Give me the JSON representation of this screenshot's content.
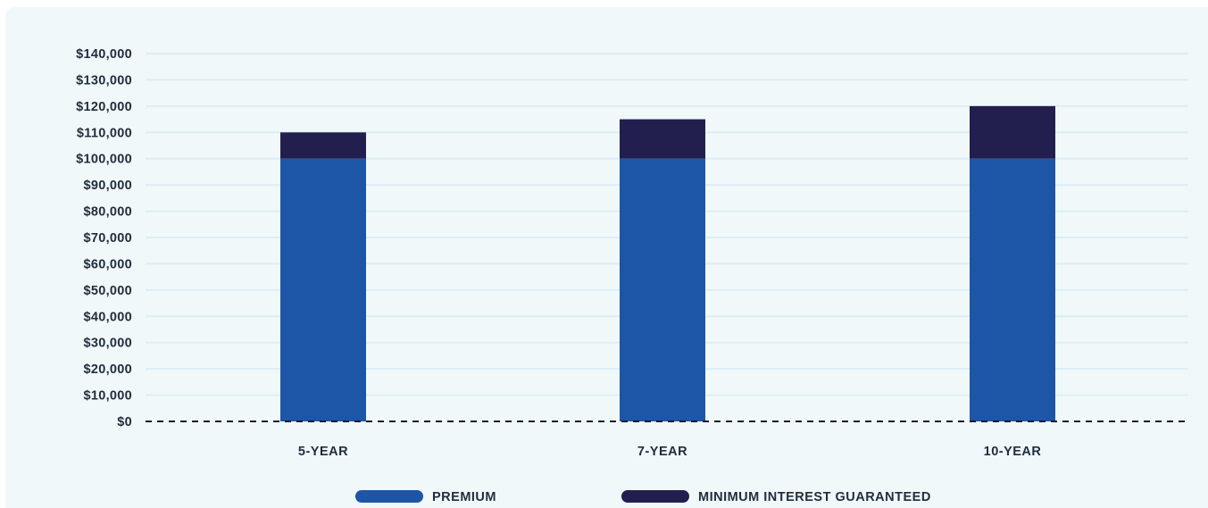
{
  "chart_data": {
    "type": "bar",
    "stacked": true,
    "categories": [
      "5-YEAR",
      "7-YEAR",
      "10-YEAR"
    ],
    "series": [
      {
        "name": "PREMIUM",
        "values": [
          100000,
          100000,
          100000
        ],
        "color": "#1e56a7"
      },
      {
        "name": "MINIMUM INTEREST GUARANTEED",
        "values": [
          10000,
          15000,
          20000
        ],
        "color": "#221f4f"
      }
    ],
    "yticks": [
      "$0",
      "$10,000",
      "$20,000",
      "$30,000",
      "$40,000",
      "$50,000",
      "$60,000",
      "$70,000",
      "$80,000",
      "$90,000",
      "$100,000",
      "$110,000",
      "$120,000",
      "$130,000",
      "$140,000"
    ],
    "ylim": [
      0,
      140000
    ],
    "grid": true,
    "legend_position": "bottom",
    "title": "",
    "xlabel": "",
    "ylabel": ""
  },
  "colors": {
    "panel_background": "#f1f8fa",
    "gridline": "#dcedf5",
    "baseline": "#1a1a2e",
    "text": "#1f2d3d"
  }
}
